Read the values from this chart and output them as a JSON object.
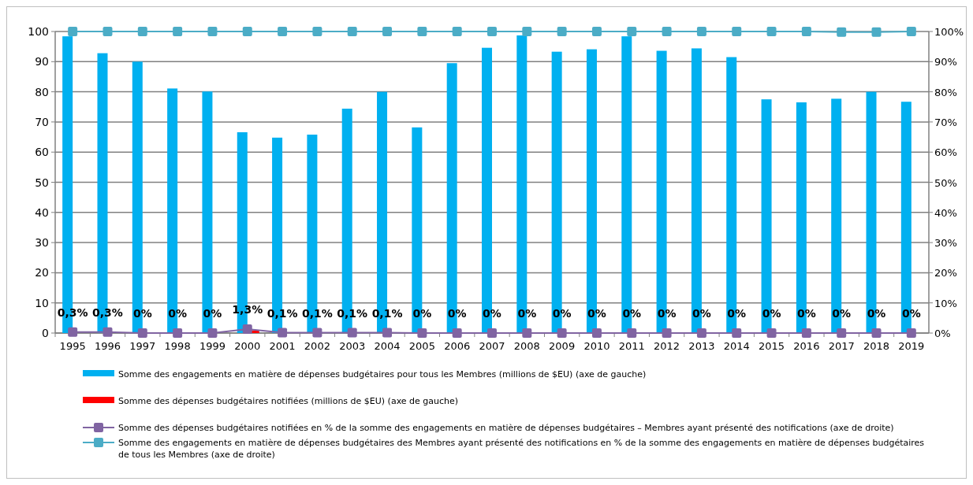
{
  "chart_data": {
    "type": "bar",
    "categories": [
      "1995",
      "1996",
      "1997",
      "1998",
      "1999",
      "2000",
      "2001",
      "2002",
      "2003",
      "2004",
      "2005",
      "2006",
      "2007",
      "2008",
      "2009",
      "2010",
      "2011",
      "2012",
      "2013",
      "2014",
      "2015",
      "2016",
      "2017",
      "2018",
      "2019"
    ],
    "series": [
      {
        "name": "Somme des engagements en matière de dépenses budgétaires pour tous les Membres (millions de $EU) (axe de gauche)",
        "color": "#00b0f0",
        "values": [
          98.4,
          92.8,
          90,
          81.1,
          80.1,
          66.6,
          64.8,
          65.8,
          74.4,
          80,
          68.2,
          89.5,
          94.6,
          98.7,
          93.3,
          94.1,
          98.4,
          93.6,
          94.4,
          91.5,
          77.5,
          76.5,
          77.7,
          80,
          76.7
        ]
      },
      {
        "name": "Somme des dépenses budgétaires notifiées (millions de $EU) (axe de gauche)",
        "color": "#ff0000",
        "values": [
          null,
          null,
          0,
          0,
          0,
          0.9,
          null,
          null,
          null,
          null,
          0,
          0,
          0,
          0,
          0,
          0,
          0,
          0,
          0,
          0,
          0,
          0,
          0,
          0,
          0
        ]
      },
      {
        "name": "Somme  des dépenses budgétaires notifiées en % de la somme  des engagements en matière de dépenses budgétaires – Membres  ayant présenté des notifications (axe de droite)",
        "type": "line",
        "color": "#8064a2",
        "marker": "square",
        "values": [
          0.3,
          0.3,
          0,
          0,
          0,
          1.3,
          0.1,
          0.1,
          0.1,
          0.1,
          0,
          0,
          0,
          0,
          0,
          0,
          0,
          0,
          0,
          0,
          0,
          0,
          0,
          0,
          0
        ],
        "value_labels": [
          "0,3%",
          "0,3%",
          "0%",
          "0%",
          "0%",
          "1,3%",
          "0,1%",
          "0,1%",
          "0,1%",
          "0,1%",
          "0%",
          "0%",
          "0%",
          "0%",
          "0%",
          "0%",
          "0%",
          "0%",
          "0%",
          "0%",
          "0%",
          "0%",
          "0%",
          "0%",
          "0%"
        ]
      },
      {
        "name": "Somme des engagements en matière de dépenses budgétaires des Membres ayant présenté des notifications en % de la somme des engagements en matière de dépenses budgétaires de tous les Membres (axe de droite)",
        "type": "line",
        "color": "#4bacc6",
        "marker": "square",
        "values": [
          100,
          100,
          100,
          100,
          100,
          100,
          100,
          100,
          100,
          100,
          100,
          100,
          100,
          100,
          100,
          100,
          100,
          100,
          100,
          100,
          100,
          100,
          99.8,
          99.8,
          100
        ]
      }
    ],
    "ylim": [
      0,
      100
    ],
    "yticks": [
      0,
      10,
      20,
      30,
      40,
      50,
      60,
      70,
      80,
      90,
      100
    ],
    "y2lim": [
      0,
      100
    ],
    "y2ticks": [
      {
        "value": 0,
        "label": "0%"
      },
      {
        "value": 10,
        "label": "10%"
      },
      {
        "value": 20,
        "label": "20%"
      },
      {
        "value": 30,
        "label": "30%"
      },
      {
        "value": 40,
        "label": "40%"
      },
      {
        "value": 50,
        "label": "50%"
      },
      {
        "value": 60,
        "label": "60%"
      },
      {
        "value": 70,
        "label": "70%"
      },
      {
        "value": 80,
        "label": "80%"
      },
      {
        "value": 90,
        "label": "90%"
      },
      {
        "value": 100,
        "label": "100%"
      }
    ],
    "grid": "y",
    "legend": "bottom"
  }
}
